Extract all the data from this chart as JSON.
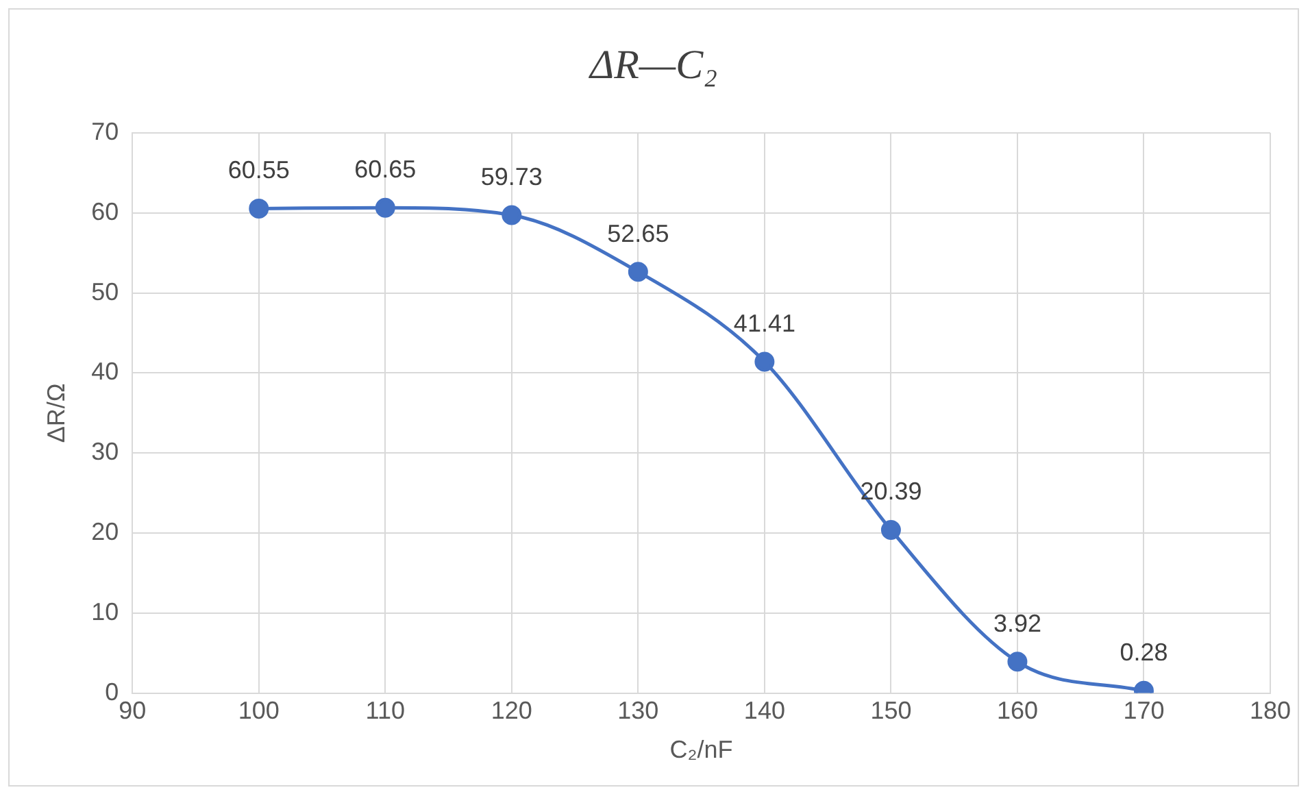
{
  "chart_data": {
    "type": "line",
    "title": "ΔR—C₂",
    "xlabel": "C₂/nF",
    "ylabel": "ΔR/Ω",
    "x": [
      100,
      110,
      120,
      130,
      140,
      150,
      160,
      170
    ],
    "series": [
      {
        "color": "#4472c4",
        "values": [
          60.55,
          60.65,
          59.73,
          52.65,
          41.41,
          20.39,
          3.92,
          0.28
        ]
      }
    ],
    "xlim": [
      90,
      180
    ],
    "xticks": [
      90,
      100,
      110,
      120,
      130,
      140,
      150,
      160,
      170,
      180
    ],
    "ylim": [
      0,
      70
    ],
    "yticks": [
      0,
      10,
      20,
      30,
      40,
      50,
      60,
      70
    ],
    "grid": true,
    "legend": false,
    "marker": "circle",
    "line_style": "solid",
    "data_labels": true
  }
}
